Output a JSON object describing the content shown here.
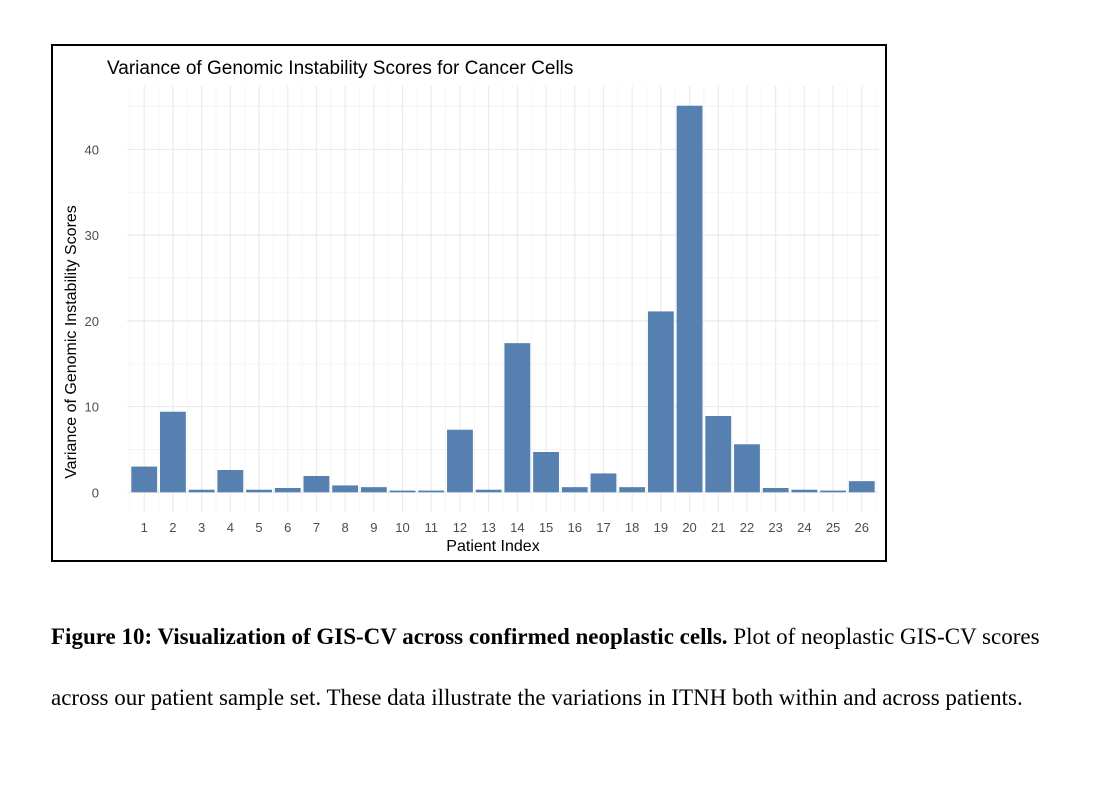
{
  "chart_data": {
    "type": "bar",
    "title": "Variance of Genomic Instability Scores for Cancer Cells",
    "xlabel": "Patient Index",
    "ylabel": "Variance of Genomic Instability Scores",
    "categories": [
      "1",
      "2",
      "3",
      "4",
      "5",
      "6",
      "7",
      "8",
      "9",
      "10",
      "11",
      "12",
      "13",
      "14",
      "15",
      "16",
      "17",
      "18",
      "19",
      "20",
      "21",
      "22",
      "23",
      "24",
      "25",
      "26"
    ],
    "values": [
      3.0,
      9.4,
      0.3,
      2.6,
      0.3,
      0.5,
      1.9,
      0.8,
      0.6,
      0.2,
      0.2,
      7.3,
      0.3,
      17.4,
      4.7,
      0.6,
      2.2,
      0.6,
      21.1,
      45.1,
      8.9,
      5.6,
      0.5,
      0.3,
      0.2,
      1.3
    ],
    "yticks": [
      0,
      10,
      20,
      30,
      40
    ],
    "ylim": [
      -2.3,
      47.4
    ],
    "grid": true,
    "bar_color": "#5580b0"
  },
  "caption": {
    "bold": "Figure 10: Visualization of GIS-CV across confirmed neoplastic cells.",
    "text": " Plot of neoplastic GIS-CV scores across our patient sample set. These data illustrate the variations in ITNH both within and across patients."
  }
}
